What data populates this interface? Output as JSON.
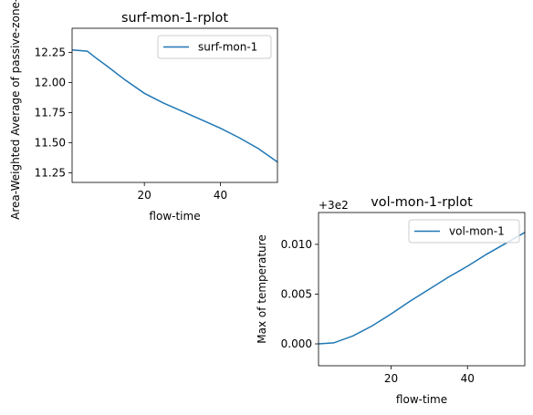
{
  "chart_data": [
    {
      "type": "line",
      "title": "surf-mon-1-rplot",
      "xlabel": "flow-time",
      "ylabel": "Area-Weighted Average of passive-zone-p",
      "xlim": [
        1,
        55
      ],
      "ylim": [
        11.17,
        12.45
      ],
      "xticks": [
        20,
        40
      ],
      "yticks": [
        11.25,
        11.5,
        11.75,
        12.0,
        12.25
      ],
      "ytick_labels": [
        "11.25",
        "11.50",
        "11.75",
        "12.00",
        "12.25"
      ],
      "legend": {
        "location": "upper right"
      },
      "series": [
        {
          "name": "surf-mon-1",
          "color": "#1f77b4",
          "x": [
            1,
            5,
            7,
            10,
            15,
            20,
            25,
            30,
            35,
            40,
            45,
            50,
            55
          ],
          "y": [
            12.27,
            12.26,
            12.21,
            12.14,
            12.02,
            11.91,
            11.83,
            11.76,
            11.69,
            11.62,
            11.54,
            11.45,
            11.34
          ]
        }
      ]
    },
    {
      "type": "line",
      "title": "vol-mon-1-rplot",
      "xlabel": "flow-time",
      "ylabel": "Max of temperature",
      "offset_label": "+3e2",
      "xlim": [
        1,
        55
      ],
      "ylim": [
        -0.0022,
        0.0132
      ],
      "xticks": [
        20,
        40
      ],
      "yticks": [
        0.0,
        0.005,
        0.01
      ],
      "ytick_labels": [
        "0.000",
        "0.005",
        "0.010"
      ],
      "legend": {
        "location": "upper right"
      },
      "series": [
        {
          "name": "vol-mon-1",
          "color": "#1f77b4",
          "x": [
            1,
            5,
            10,
            15,
            20,
            25,
            30,
            35,
            40,
            45,
            50,
            55
          ],
          "y": [
            0.0,
            0.0001,
            0.0008,
            0.0018,
            0.003,
            0.0043,
            0.0055,
            0.0067,
            0.0078,
            0.009,
            0.0101,
            0.0112
          ]
        }
      ]
    }
  ]
}
